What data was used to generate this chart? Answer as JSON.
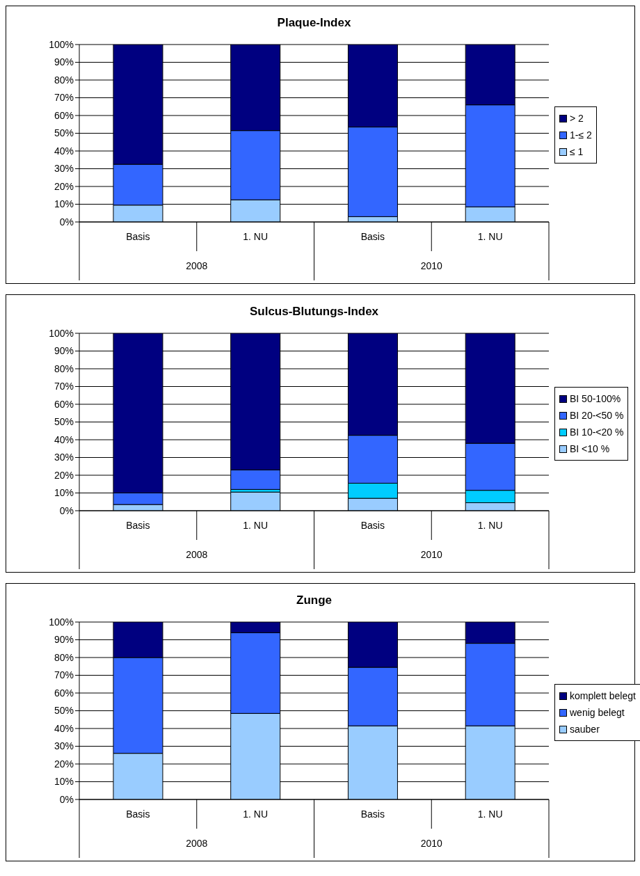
{
  "chart_data": [
    {
      "type": "bar",
      "title": "Plaque-Index",
      "stacked": true,
      "categories": [
        "Basis",
        "1. NU",
        "Basis",
        "1. NU"
      ],
      "annotations": [
        "2008",
        "2010"
      ],
      "ylim": [
        0,
        100
      ],
      "yticks": [
        {
          "value": 0,
          "label": "0%"
        },
        {
          "value": 10,
          "label": "10%"
        },
        {
          "value": 20,
          "label": "20%"
        },
        {
          "value": 30,
          "label": "30%"
        },
        {
          "value": 40,
          "label": "40%"
        },
        {
          "value": 50,
          "label": "50%"
        },
        {
          "value": 60,
          "label": "60%"
        },
        {
          "value": 70,
          "label": "70%"
        },
        {
          "value": 80,
          "label": "80%"
        },
        {
          "value": 90,
          "label": "90%"
        },
        {
          "value": 100,
          "label": "100%"
        }
      ],
      "grid": "y",
      "legend": "right",
      "series": [
        {
          "name": "≤ 1",
          "color": "#99ccff",
          "values": [
            9.5,
            12.5,
            3,
            8.5
          ]
        },
        {
          "name": "1-≤ 2",
          "color": "#3366ff",
          "values": [
            23,
            39,
            50.5,
            57.5
          ]
        },
        {
          "name": "> 2",
          "color": "#000080",
          "values": [
            67.5,
            48.5,
            46.5,
            34
          ]
        }
      ]
    },
    {
      "type": "bar",
      "title": "Sulcus-Blutungs-Index",
      "stacked": true,
      "categories": [
        "Basis",
        "1. NU",
        "Basis",
        "1. NU"
      ],
      "annotations": [
        "2008",
        "2010"
      ],
      "ylim": [
        0,
        100
      ],
      "yticks": [
        {
          "value": 0,
          "label": "0%"
        },
        {
          "value": 10,
          "label": "10%"
        },
        {
          "value": 20,
          "label": "20%"
        },
        {
          "value": 30,
          "label": "30%"
        },
        {
          "value": 40,
          "label": "40%"
        },
        {
          "value": 50,
          "label": "50%"
        },
        {
          "value": 60,
          "label": "60%"
        },
        {
          "value": 70,
          "label": "70%"
        },
        {
          "value": 80,
          "label": "80%"
        },
        {
          "value": 90,
          "label": "90%"
        },
        {
          "value": 100,
          "label": "100%"
        }
      ],
      "grid": "y",
      "legend": "right",
      "series": [
        {
          "name": "BI <10 %",
          "color": "#99ccff",
          "values": [
            3.5,
            10.5,
            7,
            4.5
          ]
        },
        {
          "name": "BI 10-<20 %",
          "color": "#00ccff",
          "values": [
            0,
            1.5,
            8.5,
            7
          ]
        },
        {
          "name": "BI 20-<50 %",
          "color": "#3366ff",
          "values": [
            6.5,
            11,
            27,
            26.5
          ]
        },
        {
          "name": "BI 50-100%",
          "color": "#000080",
          "values": [
            90,
            77,
            57.5,
            62
          ]
        }
      ]
    },
    {
      "type": "bar",
      "title": "Zunge",
      "stacked": true,
      "categories": [
        "Basis",
        "1. NU",
        "Basis",
        "1. NU"
      ],
      "annotations": [
        "2008",
        "2010"
      ],
      "ylim": [
        0,
        100
      ],
      "yticks": [
        {
          "value": 0,
          "label": "0%"
        },
        {
          "value": 10,
          "label": "10%"
        },
        {
          "value": 20,
          "label": "20%"
        },
        {
          "value": 30,
          "label": "30%"
        },
        {
          "value": 40,
          "label": "40%"
        },
        {
          "value": 50,
          "label": "50%"
        },
        {
          "value": 60,
          "label": "60%"
        },
        {
          "value": 70,
          "label": "70%"
        },
        {
          "value": 80,
          "label": "80%"
        },
        {
          "value": 90,
          "label": "90%"
        },
        {
          "value": 100,
          "label": "100%"
        }
      ],
      "grid": "y",
      "legend": "right",
      "series": [
        {
          "name": "sauber",
          "color": "#99ccff",
          "values": [
            26,
            48.5,
            41.5,
            41.5
          ]
        },
        {
          "name": "wenig belegt",
          "color": "#3366ff",
          "values": [
            54,
            45.5,
            33,
            46.5
          ]
        },
        {
          "name": "komplett belegt",
          "color": "#000080",
          "values": [
            20,
            6,
            25.5,
            12
          ]
        }
      ]
    }
  ]
}
